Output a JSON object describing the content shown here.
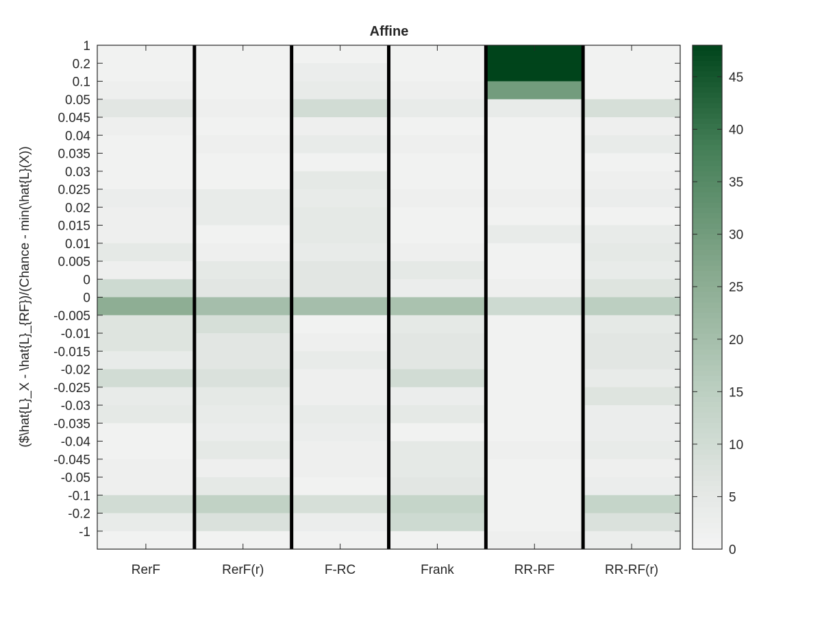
{
  "chart_data": {
    "type": "heatmap",
    "title": "Affine",
    "xlabel": "",
    "ylabel": "($\\hat{L}_X - \\hat{L}_{RF})/(Chance - min(\\hat{L}(X))",
    "x_categories": [
      "RerF",
      "RerF(r)",
      "F-RC",
      "Frank",
      "RR-RF",
      "RR-RF(r)"
    ],
    "y_tick_labels": [
      "1",
      "0.2",
      "0.1",
      "0.05",
      "0.045",
      "0.04",
      "0.035",
      "0.03",
      "0.025",
      "0.02",
      "0.015",
      "0.01",
      "0.005",
      "0",
      "0",
      "-0.005",
      "-0.01",
      "-0.015",
      "-0.02",
      "-0.025",
      "-0.03",
      "-0.035",
      "-0.04",
      "-0.045",
      "-0.05",
      "-0.1",
      "-0.2",
      "-1"
    ],
    "colorbar": {
      "min": 0,
      "max": 48,
      "ticks": [
        "0",
        "5",
        "10",
        "15",
        "20",
        "25",
        "30",
        "35",
        "40",
        "45"
      ],
      "color_low": "#f4f4f4",
      "color_high": "#00441b"
    },
    "values_by_column": [
      [
        1,
        1,
        2,
        6,
        2,
        1,
        1,
        1,
        3,
        2,
        2,
        5,
        2,
        11,
        25,
        7,
        7,
        4,
        10,
        4,
        5,
        1,
        1,
        2,
        2,
        10,
        4,
        1
      ],
      [
        1,
        1,
        1,
        2,
        1,
        2,
        1,
        1,
        4,
        4,
        1,
        2,
        5,
        6,
        20,
        9,
        6,
        6,
        8,
        5,
        4,
        3,
        5,
        2,
        5,
        14,
        8,
        1
      ],
      [
        1,
        3,
        4,
        10,
        2,
        4,
        1,
        5,
        4,
        5,
        5,
        4,
        6,
        6,
        20,
        1,
        2,
        4,
        2,
        2,
        4,
        3,
        2,
        2,
        1,
        9,
        3,
        1
      ],
      [
        1,
        1,
        2,
        4,
        1,
        2,
        1,
        1,
        2,
        1,
        1,
        2,
        5,
        3,
        19,
        5,
        6,
        6,
        10,
        3,
        5,
        1,
        5,
        5,
        6,
        13,
        11,
        1
      ],
      [
        48,
        48,
        30,
        4,
        1,
        1,
        1,
        1,
        2,
        1,
        4,
        1,
        1,
        2,
        11,
        1,
        1,
        1,
        1,
        1,
        1,
        1,
        2,
        1,
        1,
        1,
        1,
        2
      ],
      [
        1,
        1,
        1,
        9,
        2,
        4,
        1,
        2,
        3,
        1,
        4,
        5,
        4,
        7,
        15,
        5,
        6,
        6,
        4,
        7,
        3,
        3,
        4,
        2,
        3,
        13,
        8,
        3
      ]
    ],
    "grid": false,
    "column_separators": true
  }
}
